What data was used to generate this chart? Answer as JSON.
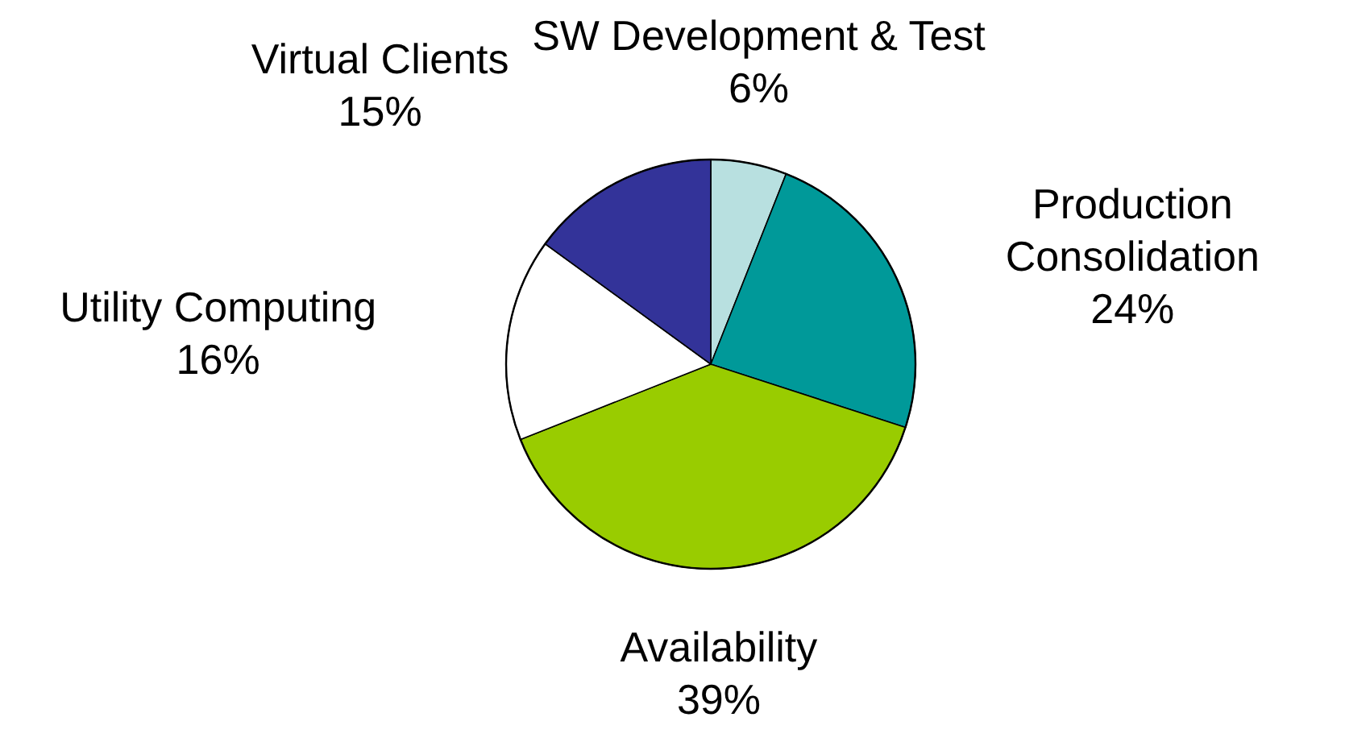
{
  "chart_data": {
    "type": "pie",
    "categories": [
      "SW Development & Test",
      "Production Consolidation",
      "Availability",
      "Utility Computing",
      "Virtual Clients"
    ],
    "values": [
      6,
      24,
      39,
      16,
      15
    ],
    "colors": [
      "#b8e0e0",
      "#009999",
      "#99cc00",
      "#ffffff",
      "#333399"
    ],
    "value_labels": [
      "6%",
      "24%",
      "39%",
      "16%",
      "15%"
    ]
  }
}
